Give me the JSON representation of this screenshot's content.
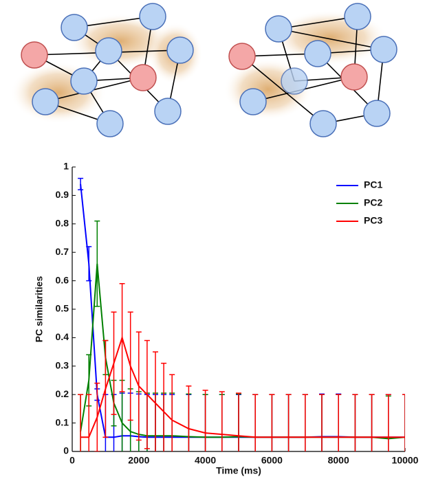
{
  "chart_data": {
    "type": "line",
    "xlabel": "Time (ms)",
    "ylabel": "PC similarities",
    "x": [
      250,
      500,
      750,
      1000,
      1250,
      1500,
      1750,
      2000,
      2250,
      2500,
      2750,
      3000,
      3500,
      4000,
      4500,
      5000,
      5500,
      6000,
      6500,
      7000,
      7500,
      8000,
      8500,
      9000,
      9500,
      10000
    ],
    "series": [
      {
        "name": "PC1",
        "color": "#0000ff",
        "values": [
          0.94,
          0.66,
          0.2,
          0.05,
          0.05,
          0.055,
          0.055,
          0.052,
          0.05,
          0.05,
          0.05,
          0.05,
          0.05,
          0.05,
          0.05,
          0.05,
          0.05,
          0.05,
          0.05,
          0.05,
          0.052,
          0.052,
          0.05,
          0.05,
          0.05,
          0.05
        ],
        "errors": [
          0.02,
          0.06,
          0.02,
          0.15,
          0.15,
          0.15,
          0.15,
          0.15,
          0.15,
          0.15,
          0.15,
          0.15,
          0.15,
          0.15,
          0.15,
          0.15,
          0.15,
          0.15,
          0.15,
          0.15,
          0.15,
          0.15,
          0.15,
          0.15,
          0.15,
          0.15
        ]
      },
      {
        "name": "PC2",
        "color": "#008000",
        "values": [
          0.07,
          0.25,
          0.66,
          0.33,
          0.17,
          0.1,
          0.07,
          0.06,
          0.055,
          0.055,
          0.055,
          0.055,
          0.052,
          0.05,
          0.05,
          0.052,
          0.05,
          0.05,
          0.05,
          0.05,
          0.05,
          0.05,
          0.05,
          0.05,
          0.045,
          0.05
        ],
        "errors": [
          0.13,
          0.09,
          0.15,
          0.06,
          0.08,
          0.15,
          0.15,
          0.15,
          0.15,
          0.15,
          0.15,
          0.15,
          0.15,
          0.15,
          0.15,
          0.15,
          0.15,
          0.15,
          0.15,
          0.15,
          0.15,
          0.15,
          0.15,
          0.15,
          0.15,
          0.15
        ]
      },
      {
        "name": "PC3",
        "color": "#ff0000",
        "values": [
          0.05,
          0.05,
          0.12,
          0.22,
          0.31,
          0.4,
          0.3,
          0.23,
          0.2,
          0.17,
          0.14,
          0.11,
          0.08,
          0.065,
          0.06,
          0.055,
          0.05,
          0.05,
          0.05,
          0.05,
          0.05,
          0.05,
          0.05,
          0.05,
          0.05,
          0.05
        ],
        "errors": [
          0.15,
          0.15,
          0.12,
          0.17,
          0.18,
          0.19,
          0.19,
          0.19,
          0.19,
          0.18,
          0.17,
          0.16,
          0.15,
          0.15,
          0.15,
          0.15,
          0.15,
          0.15,
          0.15,
          0.15,
          0.15,
          0.15,
          0.15,
          0.15,
          0.15,
          0.15
        ]
      }
    ],
    "xlim": [
      0,
      10000
    ],
    "xticks": [
      0,
      2000,
      4000,
      6000,
      8000,
      10000
    ],
    "ylim": [
      0,
      1
    ],
    "yticks": [
      0,
      0.1,
      0.2,
      0.3,
      0.4,
      0.5,
      0.6,
      0.7,
      0.8,
      0.9,
      1
    ],
    "legend": "upper right"
  }
}
